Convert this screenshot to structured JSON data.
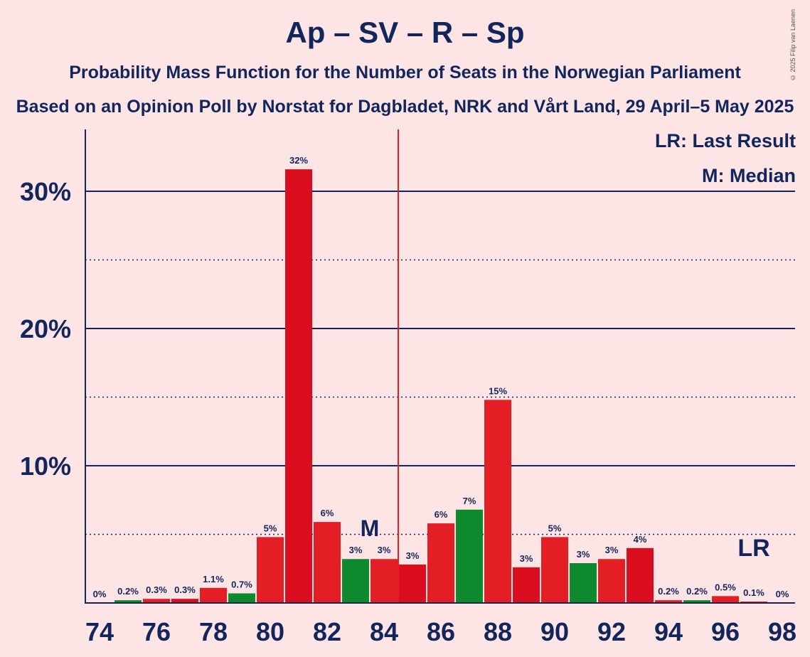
{
  "title": "Ap – SV – R – Sp",
  "subtitle": "Probability Mass Function for the Number of Seats in the Norwegian Parliament",
  "subtitle2": "Based on an Opinion Poll by Norstat for Dagbladet, NRK and Vårt Land, 29 April–5 May 2025",
  "copyright": "© 2025 Filip van Laenen",
  "legend": {
    "last_result": "LR: Last Result",
    "median": "M: Median"
  },
  "colors": {
    "background": "#FDE4E5",
    "axis": "#12265C",
    "red": "#E31E24",
    "dark_red": "#DB0E20",
    "green": "#0E8A2E"
  },
  "chart_data": {
    "type": "bar",
    "xlabel": "",
    "ylabel": "",
    "ylim": [
      0,
      34.5
    ],
    "y_ticks": [
      {
        "value": 10,
        "label": "10%"
      },
      {
        "value": 20,
        "label": "20%"
      },
      {
        "value": 30,
        "label": "30%"
      }
    ],
    "x_tick_labels": [
      "74",
      "76",
      "78",
      "80",
      "82",
      "84",
      "86",
      "88",
      "90",
      "92",
      "94",
      "96",
      "98"
    ],
    "majority_line_after_seat": 84,
    "median_seat": 84,
    "median_label": "M",
    "last_result_seat": 97,
    "last_result_label": "LR",
    "bars": [
      {
        "seat": 74,
        "value": 0,
        "label": "0%",
        "color": "red"
      },
      {
        "seat": 75,
        "value": 0.2,
        "label": "0.2%",
        "color": "green"
      },
      {
        "seat": 76,
        "value": 0.3,
        "label": "0.3%",
        "color": "red"
      },
      {
        "seat": 77,
        "value": 0.3,
        "label": "0.3%",
        "color": "dark_red"
      },
      {
        "seat": 78,
        "value": 1.1,
        "label": "1.1%",
        "color": "red"
      },
      {
        "seat": 79,
        "value": 0.7,
        "label": "0.7%",
        "color": "green"
      },
      {
        "seat": 80,
        "value": 4.8,
        "label": "5%",
        "color": "red"
      },
      {
        "seat": 81,
        "value": 31.6,
        "label": "32%",
        "color": "dark_red"
      },
      {
        "seat": 82,
        "value": 5.9,
        "label": "6%",
        "color": "red"
      },
      {
        "seat": 83,
        "value": 3.2,
        "label": "3%",
        "color": "green"
      },
      {
        "seat": 84,
        "value": 3.2,
        "label": "3%",
        "color": "red"
      },
      {
        "seat": 85,
        "value": 2.8,
        "label": "3%",
        "color": "dark_red"
      },
      {
        "seat": 86,
        "value": 5.8,
        "label": "6%",
        "color": "red"
      },
      {
        "seat": 87,
        "value": 6.8,
        "label": "7%",
        "color": "green"
      },
      {
        "seat": 88,
        "value": 14.8,
        "label": "15%",
        "color": "red"
      },
      {
        "seat": 89,
        "value": 2.6,
        "label": "3%",
        "color": "dark_red"
      },
      {
        "seat": 90,
        "value": 4.8,
        "label": "5%",
        "color": "red"
      },
      {
        "seat": 91,
        "value": 2.9,
        "label": "3%",
        "color": "green"
      },
      {
        "seat": 92,
        "value": 3.2,
        "label": "3%",
        "color": "red"
      },
      {
        "seat": 93,
        "value": 4.0,
        "label": "4%",
        "color": "dark_red"
      },
      {
        "seat": 94,
        "value": 0.2,
        "label": "0.2%",
        "color": "red"
      },
      {
        "seat": 95,
        "value": 0.2,
        "label": "0.2%",
        "color": "green"
      },
      {
        "seat": 96,
        "value": 0.5,
        "label": "0.5%",
        "color": "red"
      },
      {
        "seat": 97,
        "value": 0.1,
        "label": "0.1%",
        "color": "dark_red"
      },
      {
        "seat": 98,
        "value": 0,
        "label": "0%",
        "color": "red"
      }
    ]
  }
}
